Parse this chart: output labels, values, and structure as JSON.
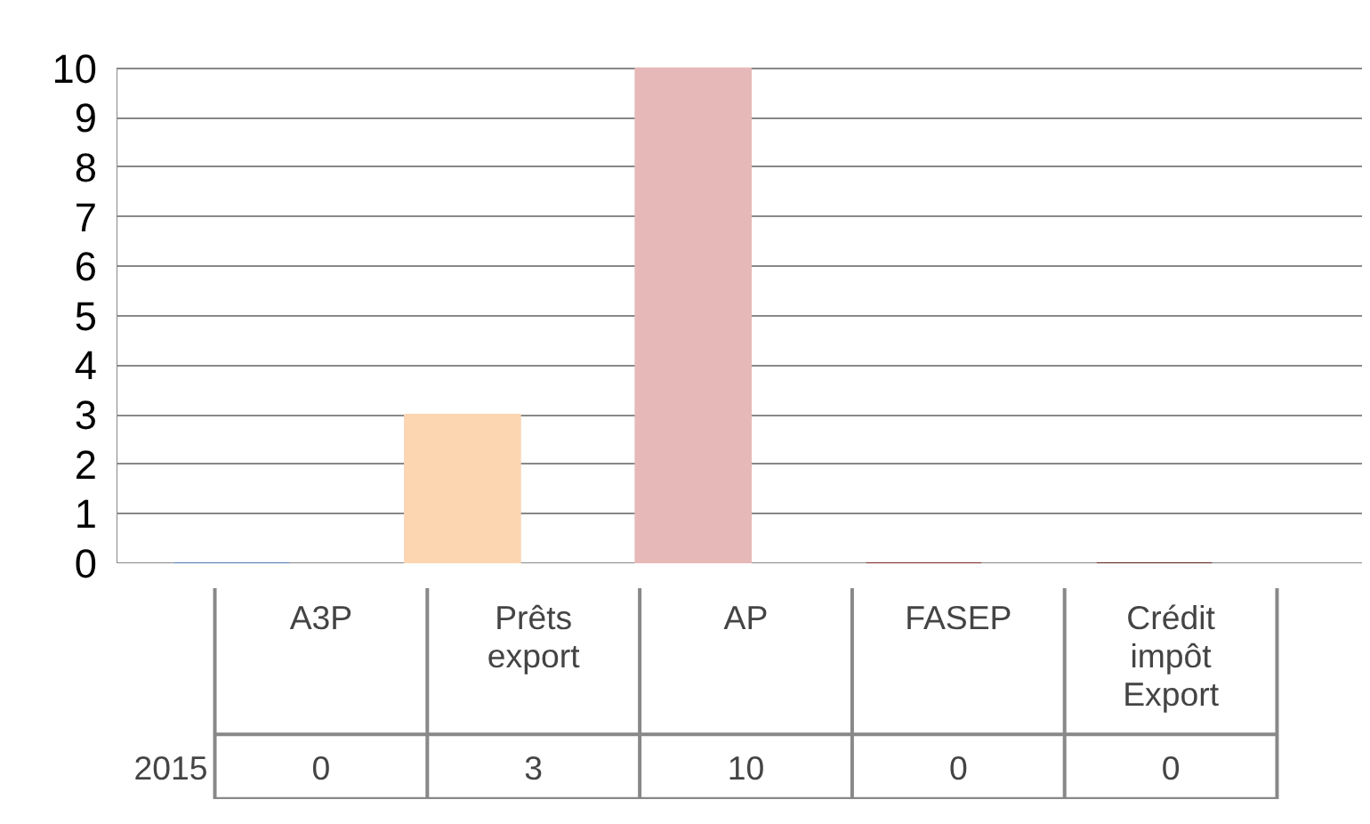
{
  "chart_data": {
    "type": "bar",
    "categories": [
      "A3P",
      "Prêts export",
      "AP",
      "FASEP",
      "Crédit impôt Export"
    ],
    "series": [
      {
        "name": "2015",
        "values": [
          0,
          3,
          10,
          0,
          0
        ],
        "colors": [
          "#4a78b4",
          "#fcd5b1",
          "#e6b9b8",
          "#7a2424",
          "#5a1818"
        ]
      }
    ],
    "ylim": [
      0,
      10
    ],
    "yticks": [
      0,
      1,
      2,
      3,
      4,
      5,
      6,
      7,
      8,
      9,
      10
    ],
    "grid": "y",
    "data_labels": true
  }
}
